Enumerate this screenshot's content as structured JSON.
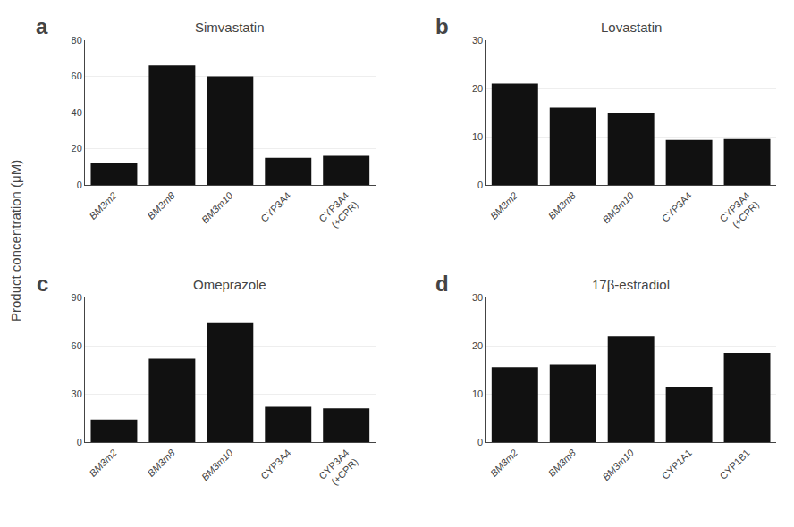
{
  "chart_data": [
    {
      "type": "bar",
      "title": "Simvastatin",
      "annotations": [
        "a"
      ],
      "ylabel": "Product concentration (μM)",
      "categories": [
        "BM3m2",
        "BM3m8",
        "BM3m10",
        "CYP3A4",
        "CYP3A4\n(+CPR)"
      ],
      "values": [
        12,
        66,
        60,
        15,
        16
      ],
      "color": "#111111",
      "ylim": [
        0,
        80
      ],
      "yticks": [
        0,
        20,
        40,
        60,
        80
      ]
    },
    {
      "type": "bar",
      "title": "Lovastatin",
      "annotations": [
        "b"
      ],
      "categories": [
        "BM3m2",
        "BM3m8",
        "BM3m10",
        "CYP3A4",
        "CYP3A4\n(+CPR)"
      ],
      "values": [
        21,
        16,
        15,
        9.3,
        9.5
      ],
      "color": "#111111",
      "ylim": [
        0,
        30
      ],
      "yticks": [
        0,
        10,
        20,
        30
      ]
    },
    {
      "type": "bar",
      "title": "Omeprazole",
      "annotations": [
        "c"
      ],
      "categories": [
        "BM3m2",
        "BM3m8",
        "BM3m10",
        "CYP3A4",
        "CYP3A4\n(+CPR)"
      ],
      "values": [
        14,
        52,
        74,
        22,
        21
      ],
      "color": "#111111",
      "ylim": [
        0,
        90
      ],
      "yticks": [
        0,
        30,
        60,
        90
      ]
    },
    {
      "type": "bar",
      "title": "17β-estradiol",
      "annotations": [
        "d"
      ],
      "categories": [
        "BM3m2",
        "BM3m8",
        "BM3m10",
        "CYP1A1",
        "CYP1B1"
      ],
      "values": [
        15.5,
        16,
        22,
        11.5,
        18.5
      ],
      "color": "#111111",
      "ylim": [
        0,
        30
      ],
      "yticks": [
        0,
        10,
        20,
        30
      ]
    }
  ]
}
